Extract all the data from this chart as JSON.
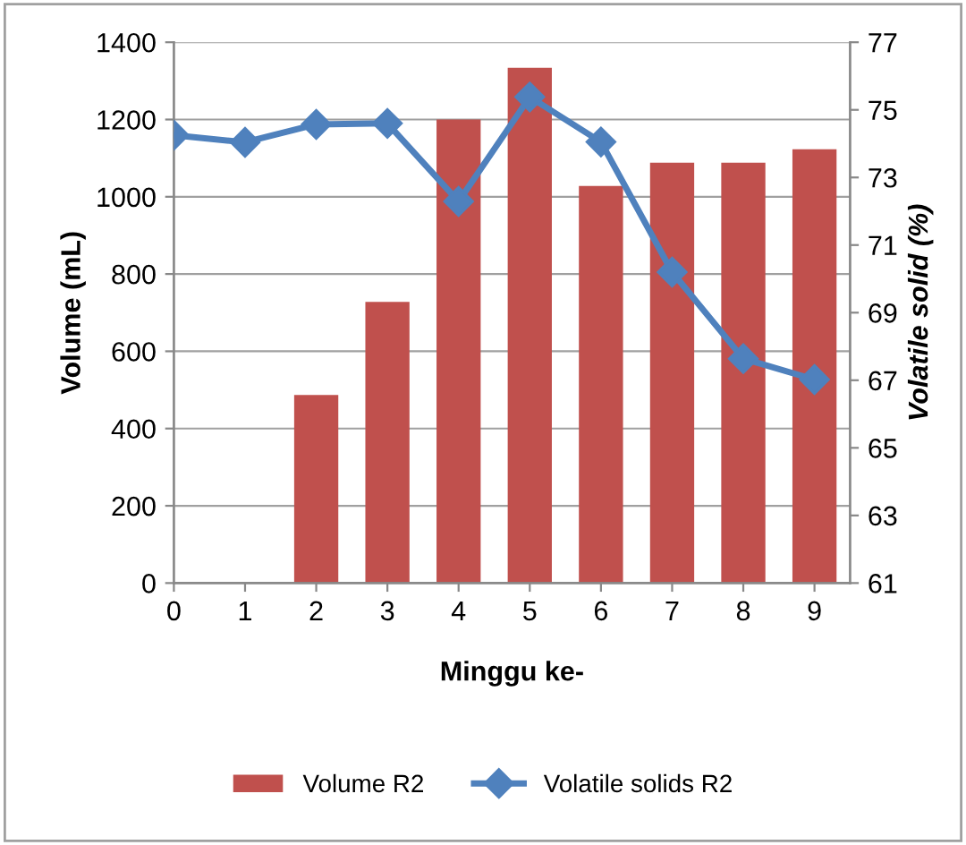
{
  "chart_data": {
    "type": "bar",
    "xlabel": "Minggu ke-",
    "ylabel": "Volume (mL)",
    "y2label": "Volatile solid (%)",
    "categories": [
      "0",
      "1",
      "2",
      "3",
      "4",
      "5",
      "6",
      "7",
      "8",
      "9"
    ],
    "series": [
      {
        "name": "Volume R2",
        "color": "#c0504d",
        "values": [
          null,
          null,
          487,
          728,
          1200,
          1334,
          1028,
          1088,
          1088,
          1123
        ]
      },
      {
        "name": "Volatile solids R2",
        "type": "line",
        "axis": "y2",
        "color": "#4f81bd",
        "marker": "diamond",
        "values": [
          74.25,
          74.04,
          74.57,
          74.6,
          72.29,
          75.38,
          74.05,
          70.2,
          67.64,
          67.02
        ]
      }
    ],
    "ylim": [
      0,
      1400
    ],
    "yticks": [
      0,
      200,
      400,
      600,
      800,
      1000,
      1200,
      1400
    ],
    "y2lim": [
      61,
      77
    ],
    "y2ticks": [
      61,
      63,
      65,
      67,
      69,
      71,
      73,
      75,
      77
    ],
    "grid": "y",
    "legend": "bottom"
  }
}
